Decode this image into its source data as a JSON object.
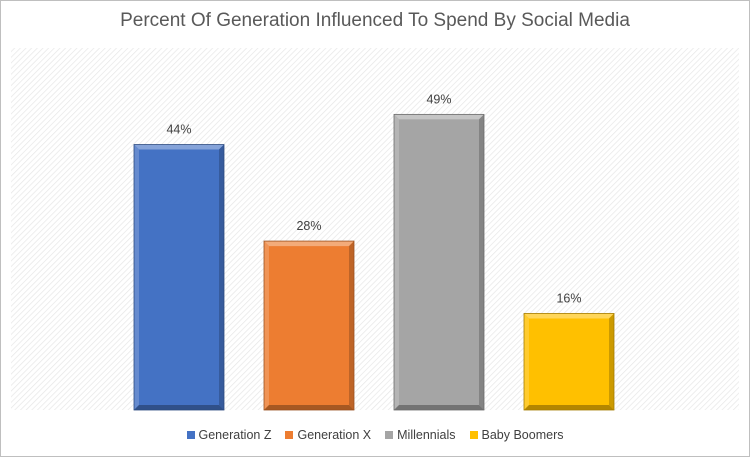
{
  "chart_data": {
    "type": "bar",
    "title": "Percent Of Generation Influenced To Spend By Social Media",
    "xlabel": "",
    "ylabel": "",
    "ylim": [
      0,
      60
    ],
    "grid": false,
    "legend_position": "bottom",
    "categories": [
      "Generation Z",
      "Generation X",
      "Millennials",
      "Baby Boomers"
    ],
    "values": [
      44,
      28,
      49,
      16
    ],
    "labels": [
      "44%",
      "28%",
      "49%",
      "16%"
    ],
    "colors": [
      "#4472C4",
      "#ED7D31",
      "#A5A5A5",
      "#FFC000"
    ]
  }
}
